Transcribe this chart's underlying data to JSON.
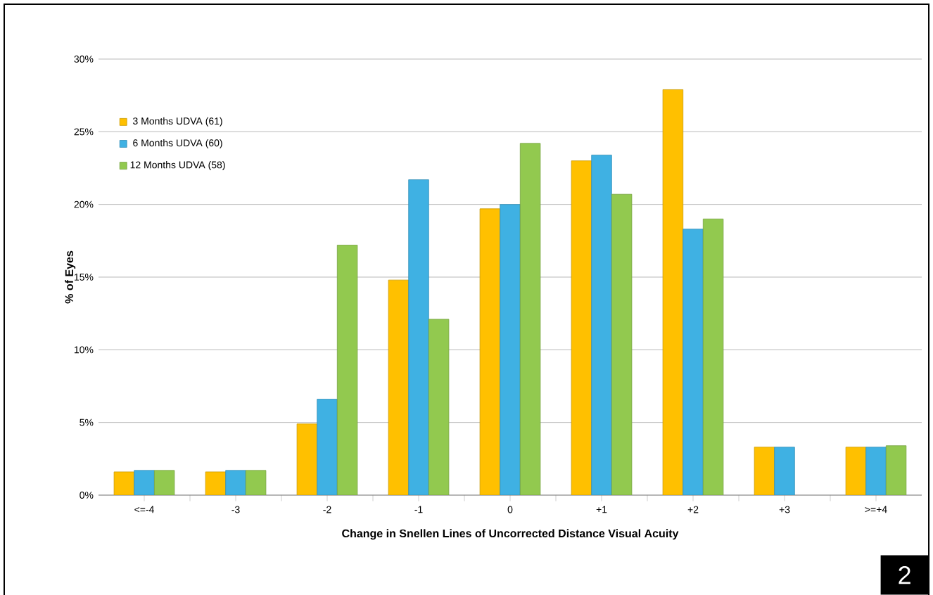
{
  "chart_data": {
    "type": "bar",
    "xlabel": "Change in Snellen Lines of  Uncorrected Distance Visual Acuity",
    "ylabel": "% of Eyes",
    "categories": [
      "<=-4",
      "-3",
      "-2",
      "-1",
      "0",
      "+1",
      "+2",
      "+3",
      ">=+4"
    ],
    "series": [
      {
        "name": "3 Months UDVA (61)",
        "color": "#ffc000",
        "values": [
          1.6,
          1.6,
          4.9,
          14.8,
          19.7,
          23.0,
          27.9,
          3.3,
          3.3
        ]
      },
      {
        "name": "6 Months UDVA (60)",
        "color": "#3fb1e3",
        "values": [
          1.7,
          1.7,
          6.6,
          21.7,
          20.0,
          23.4,
          18.3,
          3.3,
          3.3
        ]
      },
      {
        "name": "12 Months UDVA (58)",
        "color": "#92c94f",
        "values": [
          1.7,
          1.7,
          17.2,
          12.1,
          24.2,
          20.7,
          19.0,
          null,
          3.4
        ]
      }
    ],
    "ylim": [
      0,
      30
    ],
    "yticks": [
      {
        "value": 0,
        "label": "0%"
      },
      {
        "value": 5,
        "label": "5%"
      },
      {
        "value": 10,
        "label": "10%"
      },
      {
        "value": 15,
        "label": "15%"
      },
      {
        "value": 20,
        "label": "20%"
      },
      {
        "value": 25,
        "label": "25%"
      },
      {
        "value": 30,
        "label": "30%"
      }
    ],
    "grid": "y",
    "legend": "top left",
    "annotations": [
      "2"
    ]
  }
}
